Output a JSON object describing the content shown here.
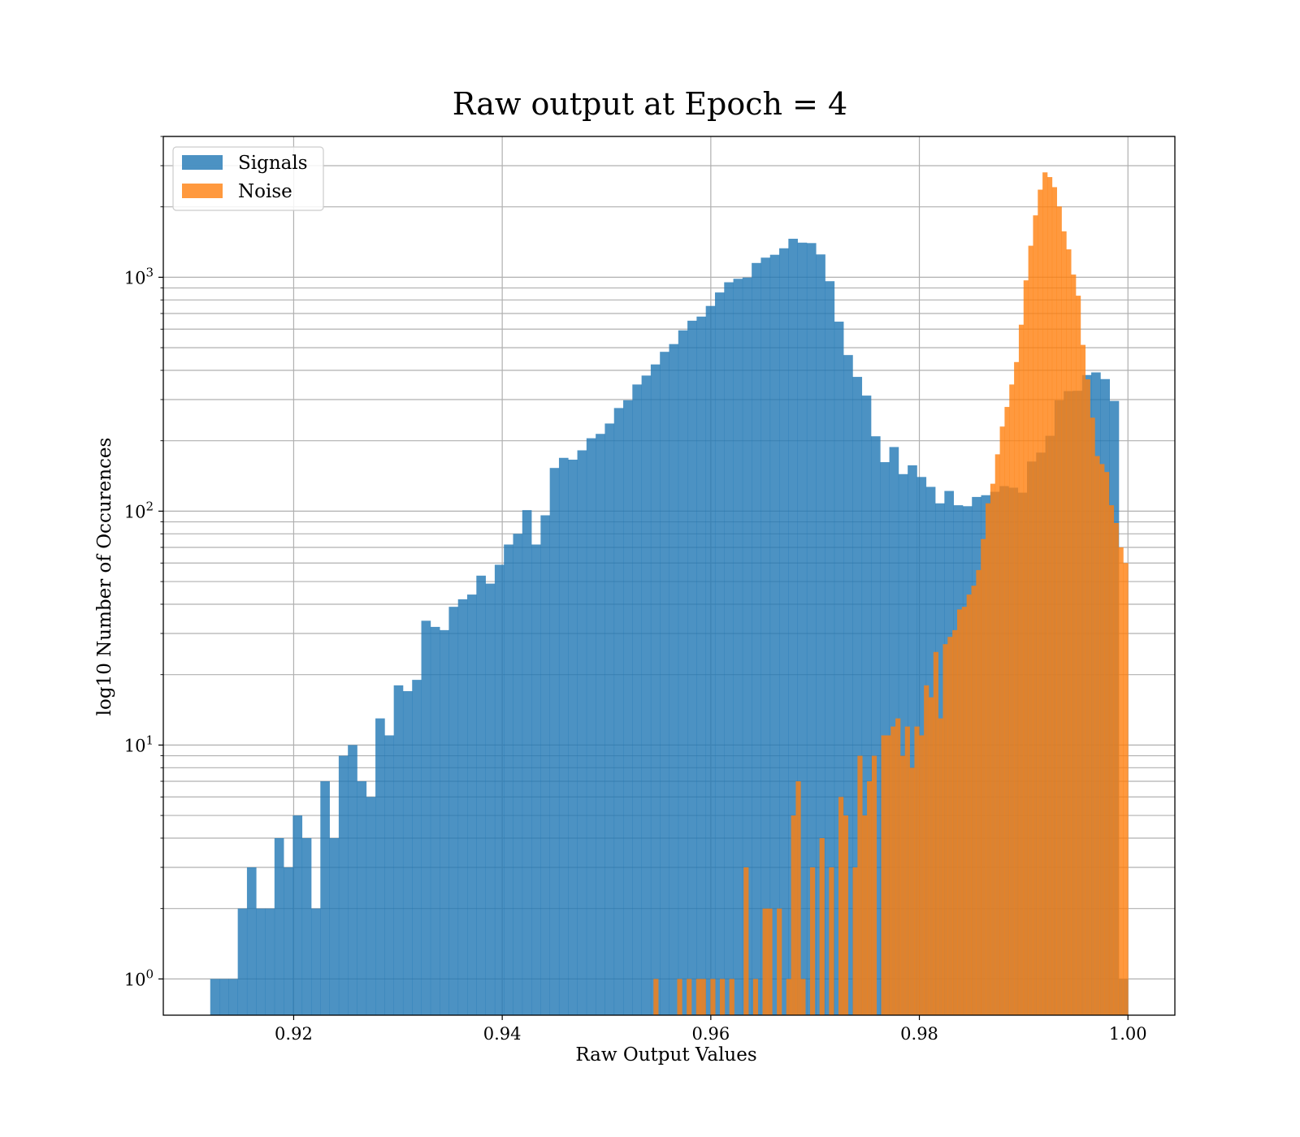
{
  "chart_data": {
    "type": "histogram",
    "title": "Raw output at Epoch = 4",
    "xlabel": "Raw Output Values",
    "ylabel": "log10 Number of Occurences",
    "yscale": "log",
    "xlim": [
      0.9075,
      1.0045
    ],
    "ylim": [
      0.7,
      4000
    ],
    "x_ticks": [
      0.92,
      0.94,
      0.96,
      0.98,
      1.0
    ],
    "x_tick_labels": [
      "0.92",
      "0.94",
      "0.96",
      "0.98",
      "1.00"
    ],
    "y_ticks": [
      1,
      10,
      100,
      1000
    ],
    "y_tick_labels": [
      {
        "base": "10",
        "exp": "0"
      },
      {
        "base": "10",
        "exp": "1"
      },
      {
        "base": "10",
        "exp": "2"
      },
      {
        "base": "10",
        "exp": "3"
      }
    ],
    "grid": true,
    "legend_position": "upper left",
    "series": [
      {
        "name": "Signals",
        "color": "#1f77b4",
        "alpha": 0.8,
        "range": [
          0.912,
          1.0
        ],
        "bins": 100,
        "counts": [
          1,
          1,
          1,
          2,
          3,
          2,
          2,
          4,
          3,
          5,
          4,
          2,
          7,
          4,
          9,
          10,
          7,
          6,
          13,
          11,
          18,
          17,
          19,
          34,
          32,
          31,
          39,
          42,
          44,
          53,
          49,
          59,
          72,
          80,
          101,
          72,
          96,
          153,
          169,
          166,
          182,
          205,
          214,
          237,
          276,
          298,
          348,
          380,
          424,
          480,
          518,
          593,
          652,
          679,
          754,
          861,
          952,
          985,
          997,
          1151,
          1213,
          1248,
          1330,
          1461,
          1406,
          1400,
          1252,
          962,
          646,
          465,
          375,
          312,
          209,
          162,
          188,
          144,
          157,
          140,
          127,
          108,
          122,
          106,
          105,
          115,
          117,
          121,
          128,
          126,
          120,
          163,
          178,
          210,
          298,
          326,
          327,
          382,
          392,
          367,
          296,
          1
        ]
      },
      {
        "name": "Noise",
        "color": "#ff7f0e",
        "alpha": 0.8,
        "range": [
          0.9545,
          1.0
        ],
        "bins": 100,
        "counts": [
          1,
          0,
          0,
          0,
          0,
          1,
          0,
          1,
          0,
          1,
          1,
          0,
          1,
          0,
          1,
          0,
          1,
          0,
          0,
          3,
          0,
          1,
          0,
          2,
          2,
          0,
          2,
          0,
          1,
          5,
          7,
          1,
          0,
          3,
          0,
          4,
          0,
          3,
          0,
          6,
          5,
          0,
          3,
          9,
          5,
          7,
          9,
          0,
          11,
          11,
          12,
          13,
          9,
          12,
          8,
          12,
          11,
          18,
          16,
          25,
          13,
          27,
          29,
          31,
          38,
          39,
          44,
          48,
          56,
          76,
          108,
          131,
          175,
          230,
          279,
          348,
          434,
          627,
          970,
          1364,
          1839,
          2369,
          2808,
          2681,
          2428,
          2008,
          1572,
          1316,
          1027,
          834,
          514,
          366,
          251,
          172,
          159,
          147,
          106,
          89,
          70,
          60
        ]
      }
    ]
  }
}
